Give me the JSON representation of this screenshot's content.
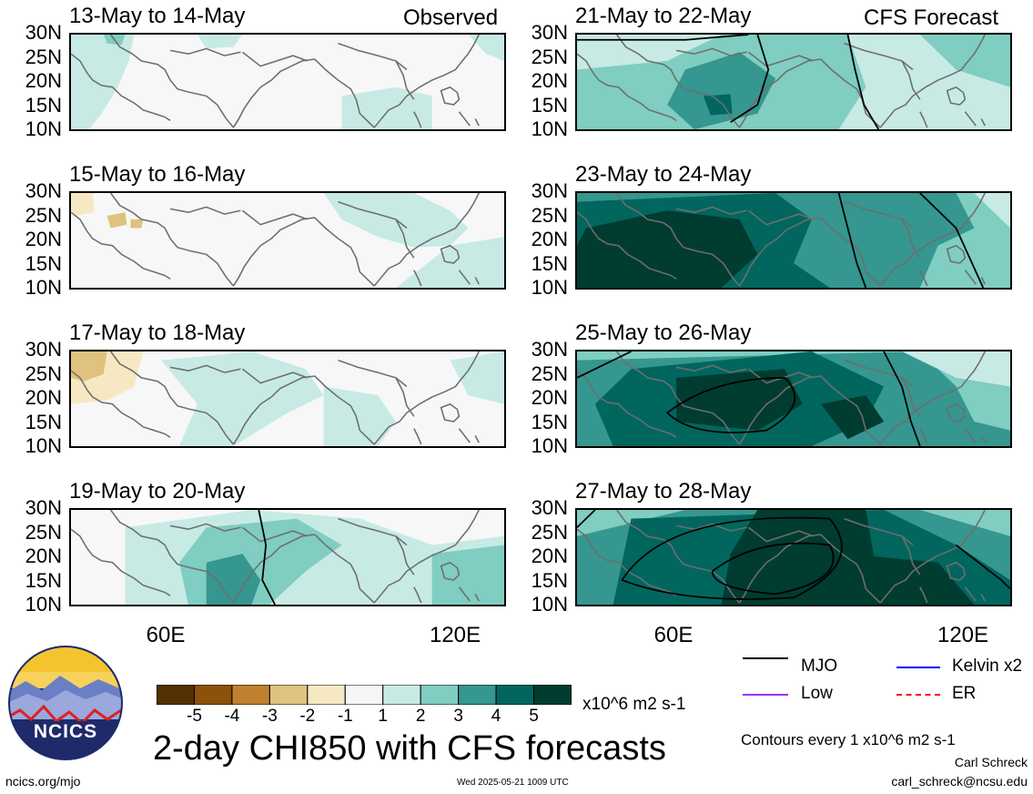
{
  "observed_label": "Observed",
  "forecast_label": "CFS Forecast",
  "panels_left": [
    {
      "title": "13-May to 14-May"
    },
    {
      "title": "15-May to 16-May"
    },
    {
      "title": "17-May to 18-May"
    },
    {
      "title": "19-May to 20-May"
    }
  ],
  "panels_right": [
    {
      "title": "21-May to 22-May"
    },
    {
      "title": "23-May to 24-May"
    },
    {
      "title": "25-May to 26-May"
    },
    {
      "title": "27-May to 28-May"
    }
  ],
  "lat_ticks": [
    "30N",
    "25N",
    "20N",
    "15N",
    "10N"
  ],
  "lon_ticks": [
    "60E",
    "120E"
  ],
  "legend": {
    "mjo": "MJO",
    "kelvin": "Kelvin x2",
    "low": "Low",
    "er": "ER",
    "colors": {
      "mjo": "#000000",
      "kelvin": "#0000ff",
      "low": "#9933ff",
      "er": "#ff0000"
    }
  },
  "colorbar": {
    "ticks": [
      "-5",
      "-4",
      "-3",
      "-2",
      "-1",
      "1",
      "2",
      "3",
      "4",
      "5"
    ],
    "colors": [
      "#543005",
      "#8c510a",
      "#bf812d",
      "#dfc27d",
      "#f6e8c3",
      "#f5f5f5",
      "#c7eae5",
      "#80cdc1",
      "#35978f",
      "#01665e",
      "#003c30"
    ],
    "units": "x10^6 m2 s-1"
  },
  "main_title": "2-day CHI850 with CFS forecasts",
  "contours_note": "Contours every 1 x10^6 m2 s-1",
  "author": "Carl Schreck",
  "email": "carl_schreck@ncsu.edu",
  "url": "ncics.org/mjo",
  "timestamp": "Wed 2025-05-21 1009 UTC",
  "logo_text": "NCICS"
}
